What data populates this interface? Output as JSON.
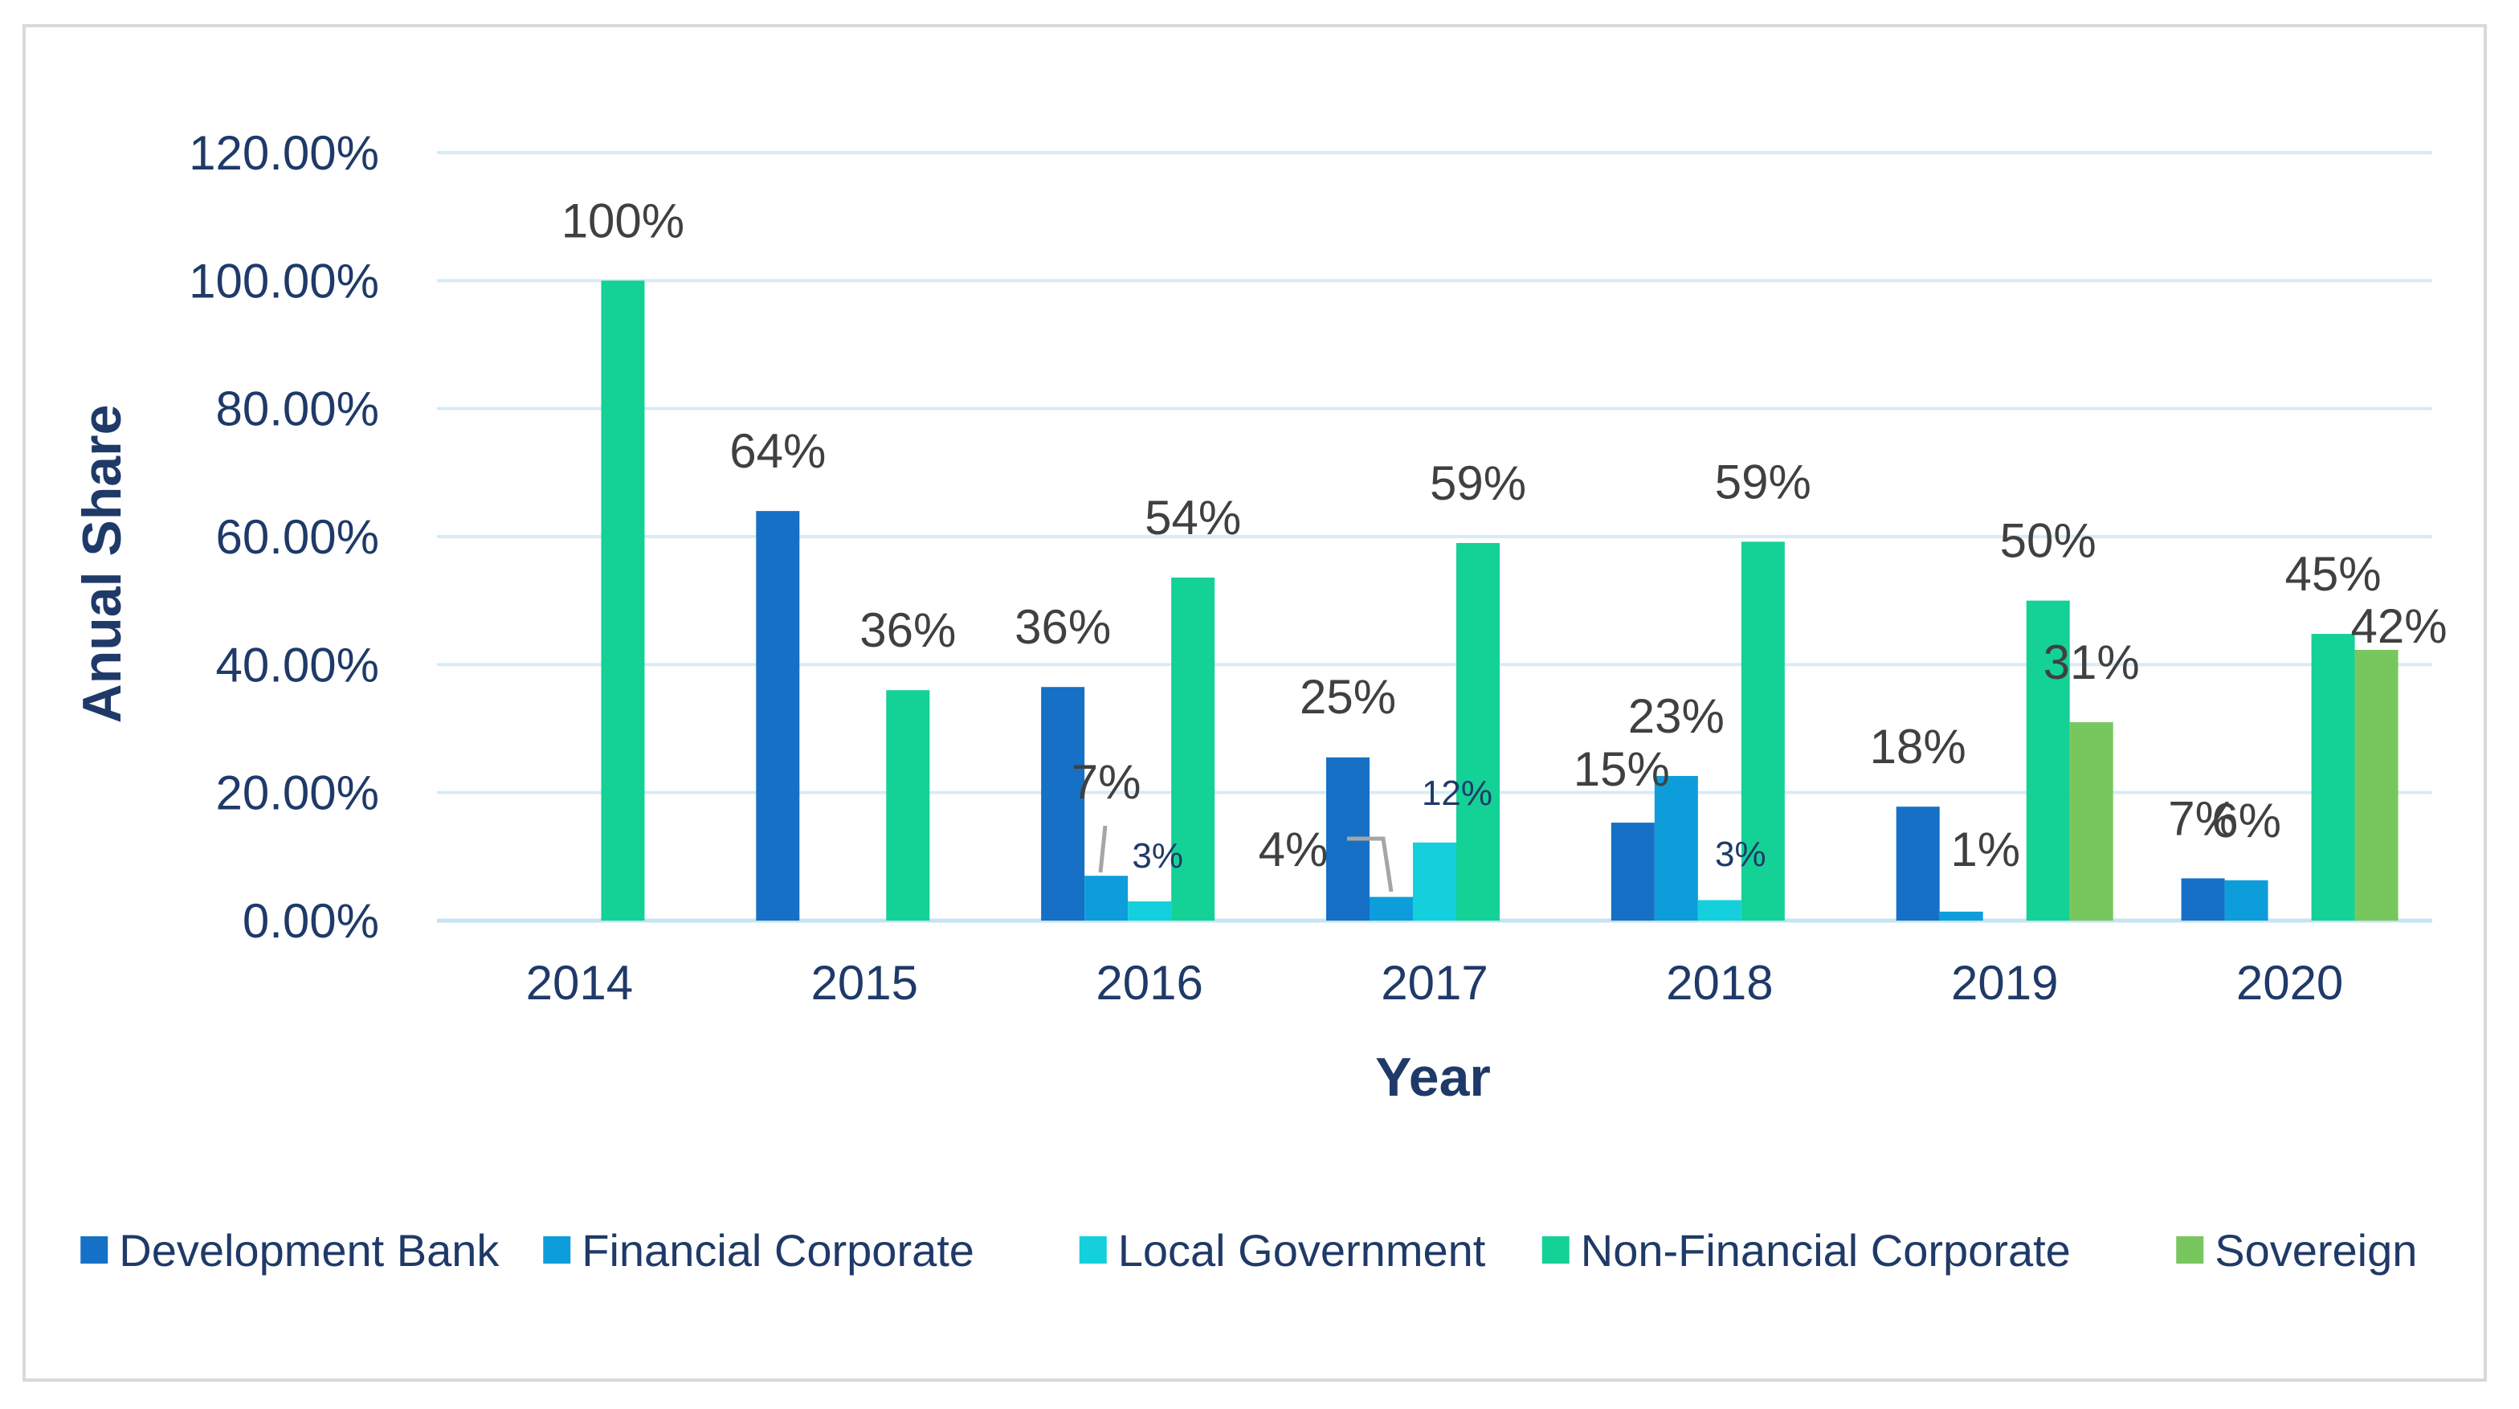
{
  "chart_data": {
    "type": "bar",
    "title": "",
    "xlabel": "Year",
    "ylabel": "Anual Share",
    "ylim": [
      0,
      120
    ],
    "yticks": [
      0,
      20,
      40,
      60,
      80,
      100,
      120
    ],
    "ytick_labels": [
      "0.00%",
      "20.00%",
      "40.00%",
      "60.00%",
      "80.00%",
      "100.00%",
      "120.00%"
    ],
    "categories": [
      "2014",
      "2015",
      "2016",
      "2017",
      "2018",
      "2019",
      "2020"
    ],
    "grid": true,
    "legend_position": "bottom",
    "series": [
      {
        "name": "Development Bank",
        "color": "#1570c6",
        "values": [
          null,
          64,
          36.5,
          25.5,
          15.3,
          17.8,
          6.6
        ],
        "labels": [
          null,
          "64%",
          "36%",
          "25%",
          "15%",
          "18%",
          "7%"
        ]
      },
      {
        "name": "Financial Corporate",
        "color": "#0e9ddb",
        "values": [
          null,
          null,
          7,
          3.7,
          22.6,
          1.4,
          6.3
        ],
        "labels": [
          null,
          null,
          "7%",
          "4%",
          "23%",
          "1%",
          "6%"
        ]
      },
      {
        "name": "Local Government",
        "color": "#13d0dc",
        "values": [
          null,
          null,
          3,
          12.2,
          3.2,
          null,
          null
        ],
        "labels": [
          null,
          null,
          "3%",
          "12%",
          "3%",
          null,
          null
        ]
      },
      {
        "name": "Non-Financial Corporate",
        "color": "#14d196",
        "values": [
          100,
          36,
          53.6,
          59,
          59.2,
          50,
          44.8
        ],
        "labels": [
          "100%",
          "36%",
          "54%",
          "59%",
          "59%",
          "50%",
          "45%"
        ]
      },
      {
        "name": "Sovereign",
        "color": "#78c75e",
        "values": [
          null,
          null,
          null,
          null,
          null,
          31,
          42.3
        ],
        "labels": [
          null,
          null,
          null,
          null,
          null,
          "31%",
          "42%"
        ]
      }
    ]
  }
}
